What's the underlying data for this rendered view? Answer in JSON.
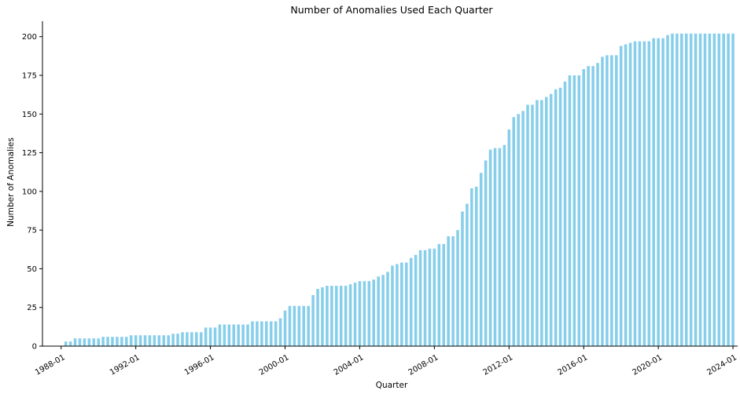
{
  "chart_data": {
    "type": "bar",
    "title": "Number of Anomalies Used Each Quarter",
    "xlabel": "Quarter",
    "ylabel": "Number of Anomalies",
    "ylim": [
      0,
      210
    ],
    "yticks": [
      0,
      25,
      50,
      75,
      100,
      125,
      150,
      175,
      200
    ],
    "xlim": [
      "1987-01",
      "2024-04"
    ],
    "xticks": [
      "1988-01",
      "1992-01",
      "1996-01",
      "2000-01",
      "2004-01",
      "2008-01",
      "2012-01",
      "2016-01",
      "2020-01",
      "2024-01"
    ],
    "bar_color": "#87CEEB",
    "grid": false,
    "legend": "none",
    "x_start_quarter": "1988-04",
    "values": [
      3,
      3,
      5,
      5,
      5,
      5,
      5,
      5,
      6,
      6,
      6,
      6,
      6,
      6,
      7,
      7,
      7,
      7,
      7,
      7,
      7,
      7,
      7,
      8,
      8,
      9,
      9,
      9,
      9,
      9,
      12,
      12,
      12,
      14,
      14,
      14,
      14,
      14,
      14,
      14,
      16,
      16,
      16,
      16,
      16,
      16,
      18,
      23,
      26,
      26,
      26,
      26,
      26,
      33,
      37,
      38,
      39,
      39,
      39,
      39,
      39,
      40,
      41,
      42,
      42,
      42,
      43,
      45,
      46,
      48,
      52,
      53,
      54,
      54,
      57,
      59,
      62,
      62,
      63,
      63,
      66,
      66,
      71,
      71,
      75,
      87,
      92,
      102,
      103,
      112,
      120,
      127,
      128,
      128,
      130,
      140,
      148,
      150,
      152,
      156,
      156,
      159,
      159,
      161,
      163,
      166,
      167,
      171,
      175,
      175,
      175,
      179,
      181,
      181,
      183,
      187,
      188,
      188,
      188,
      194,
      195,
      196,
      197,
      197,
      197,
      197,
      199,
      199,
      199,
      201,
      202,
      202,
      202,
      202,
      202,
      202,
      202,
      202,
      202,
      202,
      202,
      202,
      202,
      202
    ]
  }
}
